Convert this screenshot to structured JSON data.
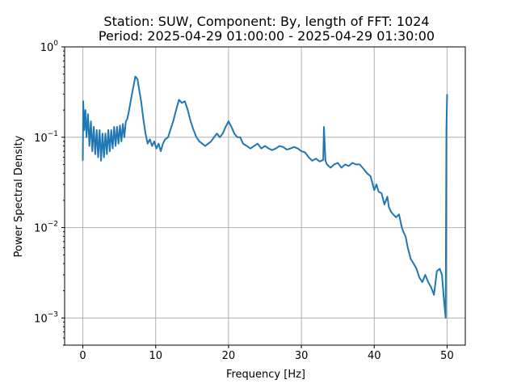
{
  "chart_data": {
    "type": "line",
    "title_line1": "Station: SUW, Component: By, length of FFT: 1024",
    "title_line2": "Period: 2025-04-29 01:00:00 - 2025-04-29 01:30:00",
    "xlabel": "Frequency [Hz]",
    "ylabel": "Power Spectral Density",
    "xlim": [
      -2.5,
      52.5
    ],
    "ylim": [
      0.0005,
      1
    ],
    "yscale": "log",
    "grid": true,
    "line_color": "#1f77b4",
    "x_ticks": [
      0,
      10,
      20,
      30,
      40,
      50
    ],
    "x_tick_labels": [
      "0",
      "10",
      "20",
      "30",
      "40",
      "50"
    ],
    "y_ticks": [
      0.001,
      0.01,
      0.1,
      1
    ],
    "y_tick_labels": [
      {
        "base": "10",
        "exp": "−3"
      },
      {
        "base": "10",
        "exp": "−2"
      },
      {
        "base": "10",
        "exp": "−1"
      },
      {
        "base": "10",
        "exp": "0"
      }
    ],
    "series": [
      {
        "x": [
          0,
          0.05,
          0.2,
          0.35,
          0.5,
          0.7,
          0.9,
          1.1,
          1.3,
          1.5,
          1.7,
          1.9,
          2.1,
          2.3,
          2.5,
          2.7,
          2.9,
          3.1,
          3.3,
          3.5,
          3.7,
          3.9,
          4.1,
          4.3,
          4.5,
          4.7,
          4.9,
          5.1,
          5.3,
          5.5,
          5.7,
          5.9,
          6.1,
          6.3,
          6.6,
          6.9,
          7.2,
          7.5,
          7.7,
          8.0,
          8.3,
          8.6,
          8.9,
          9.2,
          9.5,
          9.8,
          10.1,
          10.4,
          10.7,
          11.0,
          11.3,
          11.7,
          12.0,
          12.4,
          12.8,
          13.2,
          13.6,
          14.0,
          14.4,
          14.8,
          15.2,
          15.6,
          16.0,
          16.4,
          16.8,
          17.2,
          17.6,
          18.0,
          18.4,
          18.8,
          19.2,
          19.6,
          20.0,
          20.4,
          20.8,
          21.2,
          21.6,
          22.0,
          22.5,
          23.0,
          23.5,
          24.0,
          24.5,
          25.0,
          25.5,
          26.0,
          26.5,
          27.0,
          27.5,
          28.0,
          28.5,
          29.0,
          29.5,
          30.0,
          30.5,
          31.0,
          31.5,
          32.0,
          32.5,
          33.0,
          33.1,
          33.3,
          33.5,
          34.0,
          34.5,
          35.0,
          35.5,
          36.0,
          36.5,
          37.0,
          37.5,
          38.0,
          38.5,
          39.0,
          39.5,
          40.0,
          40.3,
          40.6,
          41.0,
          41.4,
          41.8,
          42.0,
          42.3,
          42.6,
          43.0,
          43.4,
          43.8,
          44.0,
          44.3,
          44.6,
          45.0,
          45.4,
          45.8,
          46.2,
          46.6,
          47.0,
          47.4,
          47.8,
          48.2,
          48.6,
          49.0,
          49.3,
          49.6,
          49.8,
          49.9,
          50.0
        ],
        "y": [
          0.055,
          0.25,
          0.12,
          0.2,
          0.1,
          0.18,
          0.08,
          0.15,
          0.07,
          0.13,
          0.065,
          0.12,
          0.06,
          0.12,
          0.055,
          0.11,
          0.06,
          0.11,
          0.065,
          0.12,
          0.07,
          0.12,
          0.075,
          0.13,
          0.08,
          0.13,
          0.085,
          0.135,
          0.09,
          0.14,
          0.1,
          0.15,
          0.16,
          0.19,
          0.26,
          0.35,
          0.47,
          0.44,
          0.35,
          0.25,
          0.16,
          0.11,
          0.085,
          0.095,
          0.08,
          0.09,
          0.075,
          0.085,
          0.07,
          0.085,
          0.095,
          0.1,
          0.12,
          0.15,
          0.2,
          0.26,
          0.24,
          0.25,
          0.2,
          0.15,
          0.12,
          0.1,
          0.09,
          0.085,
          0.08,
          0.085,
          0.09,
          0.1,
          0.11,
          0.1,
          0.11,
          0.13,
          0.15,
          0.13,
          0.11,
          0.1,
          0.1,
          0.085,
          0.08,
          0.075,
          0.08,
          0.085,
          0.075,
          0.08,
          0.075,
          0.072,
          0.075,
          0.08,
          0.078,
          0.073,
          0.075,
          0.078,
          0.075,
          0.07,
          0.068,
          0.06,
          0.055,
          0.058,
          0.054,
          0.056,
          0.13,
          0.055,
          0.05,
          0.046,
          0.05,
          0.052,
          0.046,
          0.05,
          0.048,
          0.052,
          0.05,
          0.05,
          0.045,
          0.04,
          0.037,
          0.026,
          0.03,
          0.025,
          0.024,
          0.018,
          0.022,
          0.017,
          0.015,
          0.014,
          0.013,
          0.014,
          0.01,
          0.009,
          0.008,
          0.006,
          0.0045,
          0.004,
          0.0035,
          0.0028,
          0.0025,
          0.003,
          0.0025,
          0.0022,
          0.0018,
          0.0033,
          0.0035,
          0.003,
          0.0015,
          0.001,
          0.12,
          0.3
        ]
      }
    ]
  }
}
